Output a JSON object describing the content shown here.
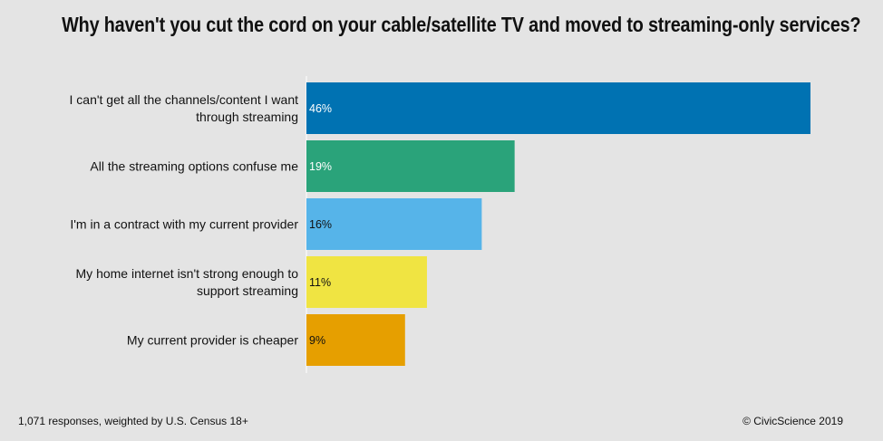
{
  "chart_data": {
    "type": "bar",
    "orientation": "horizontal",
    "title": "Why haven't you cut the cord on your cable/satellite TV and moved to streaming-only services?",
    "categories": [
      [
        "I can't get all the channels/content I want",
        "through streaming"
      ],
      [
        "All the streaming options confuse me"
      ],
      [
        "I'm in a contract with my current provider"
      ],
      [
        "My home internet isn't strong enough to",
        "support streaming"
      ],
      [
        "My current provider is cheaper"
      ]
    ],
    "values": [
      46,
      19,
      16,
      11,
      9
    ],
    "value_labels": [
      "46%",
      "19%",
      "16%",
      "11%",
      "9%"
    ],
    "colors": [
      "#0072b2",
      "#2aa37a",
      "#56b4e9",
      "#f0e442",
      "#e69f00"
    ],
    "label_colors": [
      "#ffffff",
      "#ffffff",
      "#111111",
      "#111111",
      "#111111"
    ],
    "xlim": [
      0,
      46
    ],
    "grid": false,
    "legend": "none"
  },
  "footer": {
    "note": "1,071 responses, weighted by U.S. Census 18+",
    "credit": "© CivicScience 2019"
  }
}
